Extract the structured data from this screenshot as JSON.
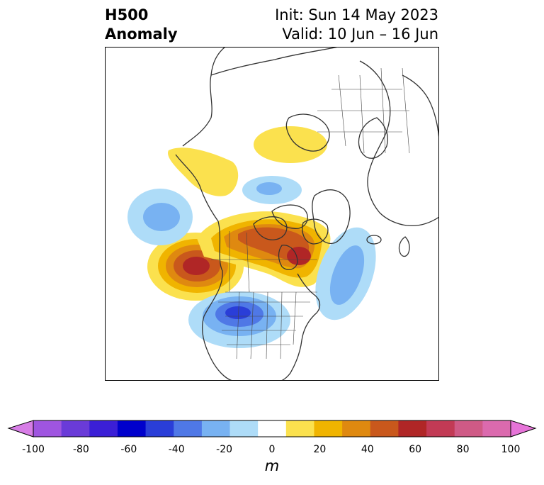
{
  "title": {
    "left_line1": "H500",
    "left_line2": "Anomaly",
    "right_line1": "Init: Sun 14 May 2023",
    "right_line2": "Valid: 10 Jun – 16 Jun"
  },
  "colorbar": {
    "unit": "m",
    "ticks": [
      "-100",
      "-80",
      "-60",
      "-40",
      "-20",
      "0",
      "20",
      "40",
      "60",
      "80",
      "100"
    ],
    "colors": [
      "#d77de6",
      "#9f55e0",
      "#6a3bd8",
      "#3b1fd6",
      "#0000cc",
      "#2a3ed8",
      "#4f78e6",
      "#78b2f2",
      "#aedcf8",
      "#ffffff",
      "#fbe14e",
      "#f0b400",
      "#df8910",
      "#c9581c",
      "#b02626",
      "#c23a55",
      "#cf5a86",
      "#db6aae",
      "#e674d8"
    ]
  },
  "anomalies": [
    {
      "name": "pacific-high",
      "color_level": "+50 to +60"
    },
    {
      "name": "canada-high",
      "color_level": "+50 to +60"
    },
    {
      "name": "us-low",
      "color_level": "-40 to -50"
    }
  ]
}
